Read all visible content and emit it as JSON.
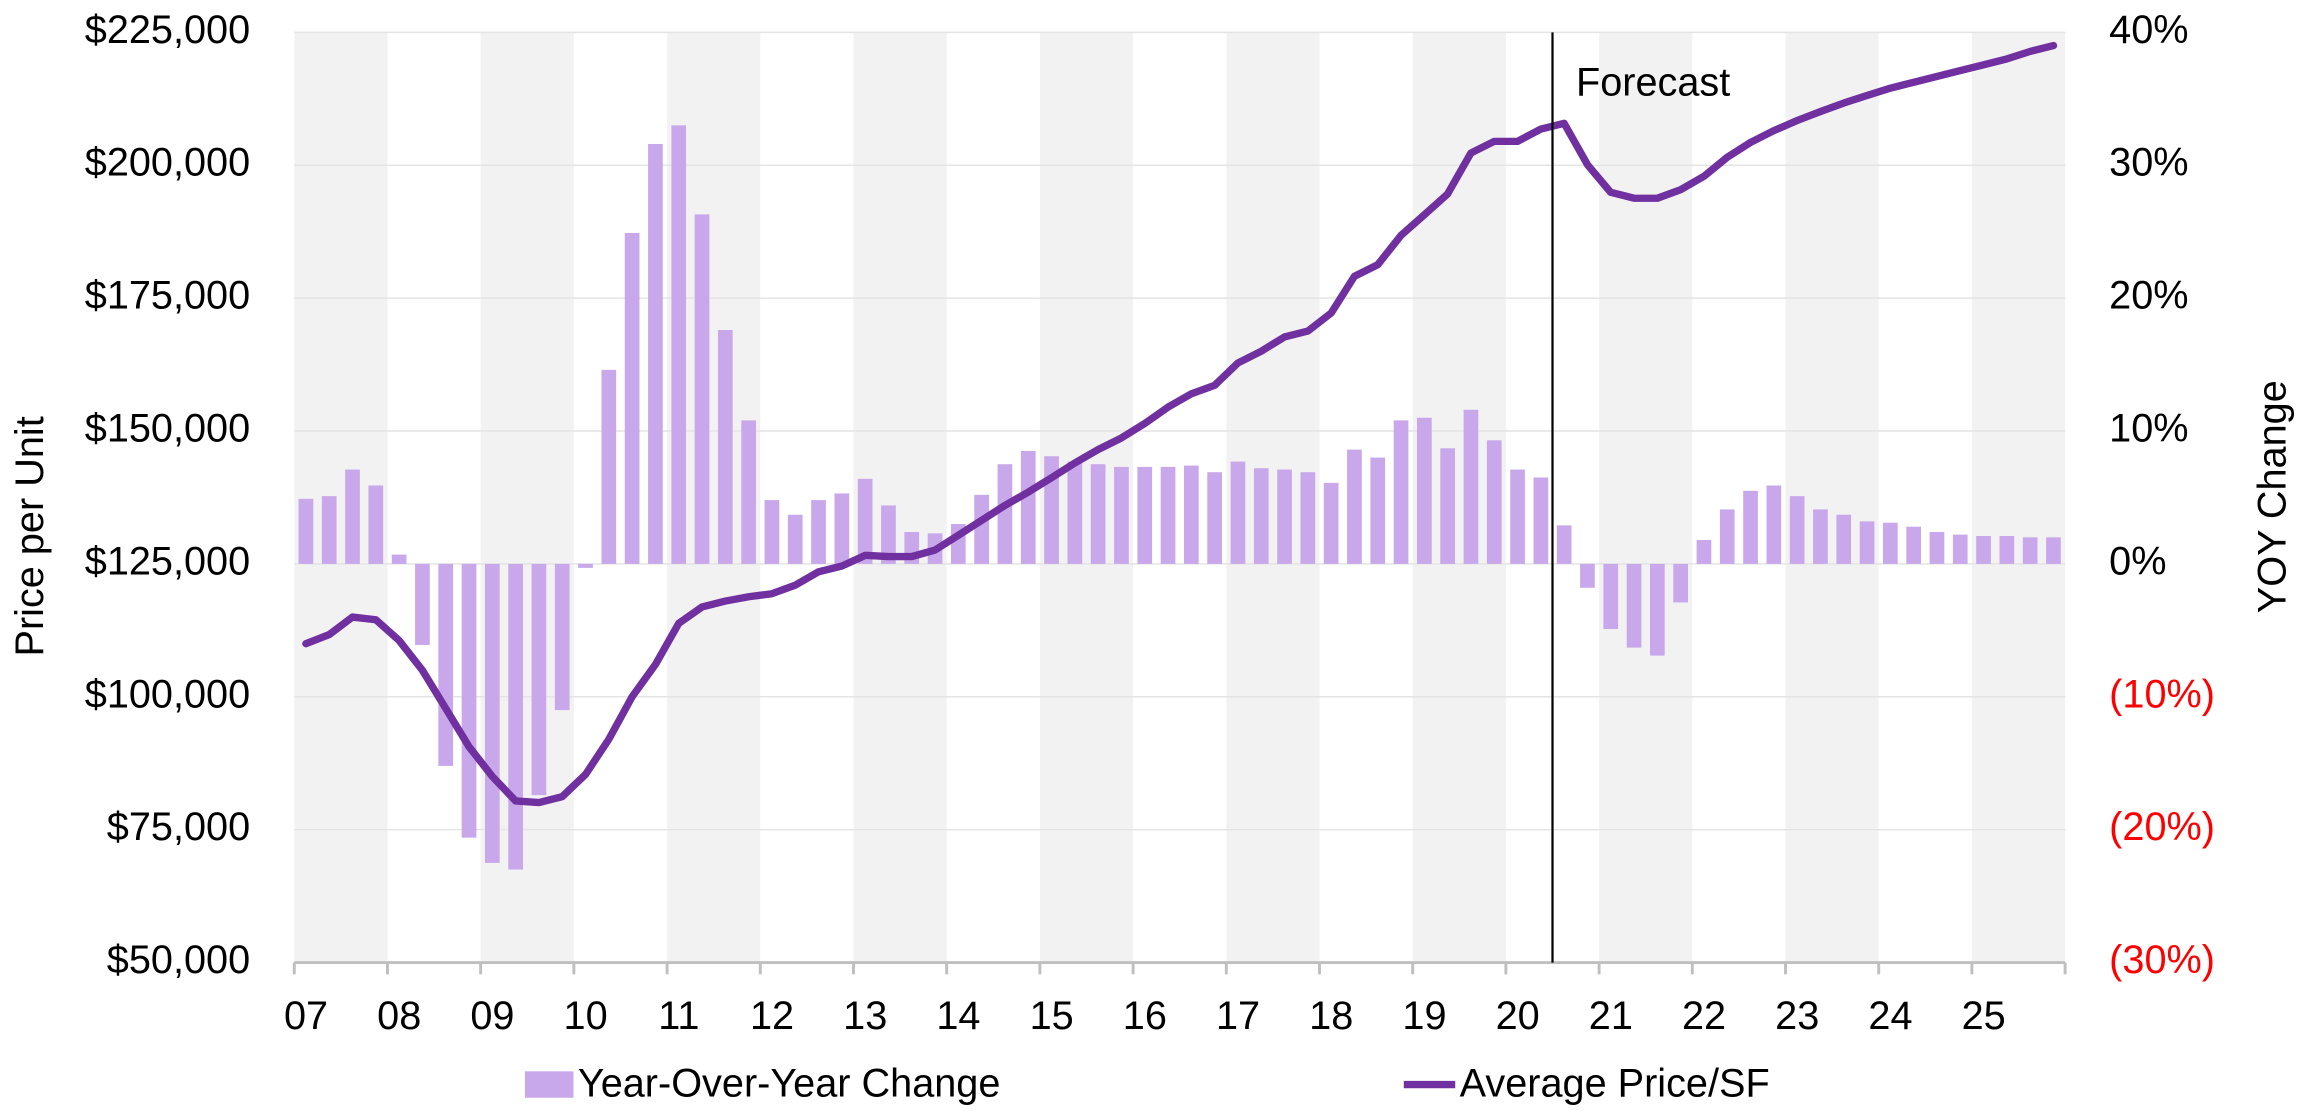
{
  "chart_data": {
    "type": "combo",
    "categories": [
      "07",
      null,
      null,
      null,
      "08",
      null,
      null,
      null,
      "09",
      null,
      null,
      null,
      "10",
      null,
      null,
      null,
      "11",
      null,
      null,
      null,
      "12",
      null,
      null,
      null,
      "13",
      null,
      null,
      null,
      "14",
      null,
      null,
      null,
      "15",
      null,
      null,
      null,
      "16",
      null,
      null,
      null,
      "17",
      null,
      null,
      null,
      "18",
      null,
      null,
      null,
      "19",
      null,
      null,
      null,
      "20",
      null,
      null,
      null,
      "21",
      null,
      null,
      null,
      "22",
      null,
      null,
      null,
      "23",
      null,
      null,
      null,
      "24",
      null,
      null,
      null,
      "25",
      null,
      null,
      null
    ],
    "series": [
      {
        "name": "Year-Over-Year Change",
        "type": "bar",
        "axis": "y2",
        "color": "#c8a8ea",
        "values": [
          4.9,
          5.1,
          7.1,
          5.9,
          0.7,
          -6.1,
          -15.2,
          -20.6,
          -22.5,
          -23.0,
          -17.4,
          -11.0,
          -0.3,
          14.6,
          24.9,
          31.6,
          33.0,
          26.3,
          17.6,
          10.8,
          4.8,
          3.7,
          4.8,
          5.3,
          6.4,
          4.4,
          2.4,
          2.3,
          3.0,
          5.2,
          7.5,
          8.5,
          8.1,
          7.7,
          7.5,
          7.3,
          7.3,
          7.3,
          7.4,
          6.9,
          7.7,
          7.2,
          7.1,
          6.9,
          6.1,
          8.6,
          8.0,
          10.8,
          11.0,
          8.7,
          11.6,
          9.3,
          7.1,
          6.5,
          2.9,
          -1.8,
          -4.9,
          -6.3,
          -6.9,
          -2.9,
          1.8,
          4.1,
          5.5,
          5.9,
          5.1,
          4.1,
          3.7,
          3.2,
          3.1,
          2.8,
          2.4,
          2.2,
          2.1,
          2.1,
          2.0,
          2.0
        ]
      },
      {
        "name": "Average Price/SF",
        "type": "line",
        "axis": "y",
        "color": "#7030a0",
        "values": [
          110000,
          111700,
          115000,
          114500,
          110600,
          105000,
          97800,
          90600,
          85000,
          80400,
          80100,
          81200,
          85400,
          92000,
          100000,
          106100,
          113800,
          116900,
          118000,
          118800,
          119400,
          121000,
          123500,
          124600,
          126600,
          126400,
          126400,
          127600,
          130400,
          133200,
          136000,
          138500,
          141200,
          144000,
          146500,
          148700,
          151400,
          154500,
          157000,
          158600,
          162800,
          165000,
          167700,
          168800,
          172200,
          179100,
          181300,
          186800,
          190700,
          194600,
          202300,
          204500,
          204500,
          206800,
          207900,
          200100,
          194900,
          193800,
          193800,
          195400,
          197900,
          201500,
          204300,
          206500,
          208400,
          210100,
          211700,
          213100,
          214500,
          215600,
          216700,
          217800,
          218900,
          220000,
          221400,
          222500
        ]
      }
    ],
    "y_label": "Price per Unit",
    "y2_label": "YOY Change",
    "ylim": [
      50000,
      225000
    ],
    "yticks": [
      {
        "value": 50000,
        "label": "$50,000"
      },
      {
        "value": 75000,
        "label": "$75,000"
      },
      {
        "value": 100000,
        "label": "$100,000"
      },
      {
        "value": 125000,
        "label": "$125,000"
      },
      {
        "value": 150000,
        "label": "$150,000"
      },
      {
        "value": 175000,
        "label": "$175,000"
      },
      {
        "value": 200000,
        "label": "$200,000"
      },
      {
        "value": 225000,
        "label": "$225,000"
      }
    ],
    "y2lim": [
      -30,
      40
    ],
    "y2ticks": [
      {
        "value": -30,
        "label": "(30%)"
      },
      {
        "value": -20,
        "label": "(20%)"
      },
      {
        "value": -10,
        "label": "(10%)"
      },
      {
        "value": 0,
        "label": "0%"
      },
      {
        "value": 10,
        "label": "10%"
      },
      {
        "value": 20,
        "label": "20%"
      },
      {
        "value": 30,
        "label": "30%"
      },
      {
        "value": 40,
        "label": "40%"
      }
    ],
    "negative_tick_color": "#ff0000",
    "grid": true,
    "annotations": [
      {
        "text": "Forecast",
        "position": 54
      }
    ]
  }
}
